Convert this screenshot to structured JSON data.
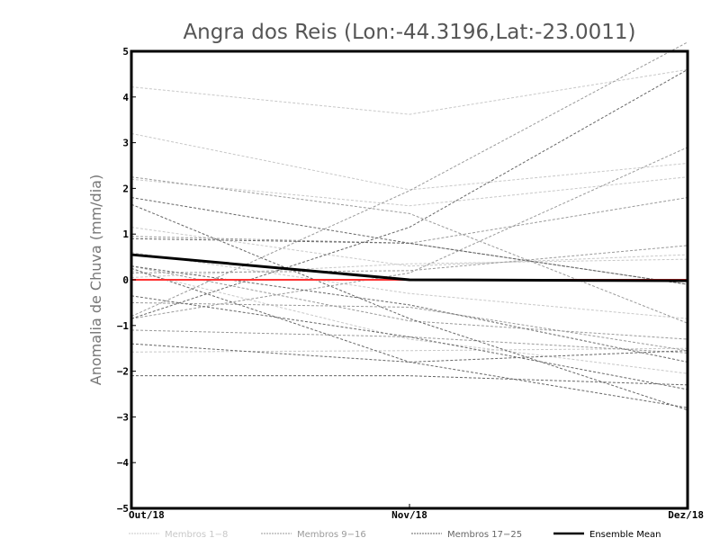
{
  "chart_data": {
    "type": "line",
    "title": "Angra dos Reis (Lon:-44.3196,Lat:-23.0011)",
    "xlabel": "",
    "ylabel": "Anomalia de Chuva (mm/dia)",
    "categories": [
      "Out/18",
      "Nov/18",
      "Dez/18"
    ],
    "ylim": [
      -5,
      5
    ],
    "yticks": [
      -5,
      -4,
      -3,
      -2,
      -1,
      0,
      1,
      2,
      3,
      4,
      5
    ],
    "grid": false,
    "legend_position": "bottom",
    "reference_line": {
      "value": 0,
      "color": "#ff3333"
    },
    "groups": [
      {
        "name": "Membros 1-8",
        "color": "#c8c8c8",
        "series": [
          [
            4.22,
            3.62,
            4.6
          ],
          [
            3.2,
            1.97,
            2.55
          ],
          [
            2.2,
            1.62,
            2.25
          ],
          [
            1.15,
            0.3,
            0.55
          ],
          [
            0.6,
            -0.3,
            -0.85
          ],
          [
            0.2,
            -1.3,
            -2.05
          ],
          [
            -1.58,
            -1.55,
            -1.5
          ],
          [
            0.05,
            0.35,
            0.45
          ]
        ]
      },
      {
        "name": "Membros 9-16",
        "color": "#9a9a9a",
        "series": [
          [
            -0.8,
            1.95,
            5.2
          ],
          [
            0.95,
            0.8,
            1.8
          ],
          [
            2.25,
            1.45,
            -0.95
          ],
          [
            0.3,
            -0.9,
            -1.3
          ],
          [
            -0.5,
            -0.6,
            -1.55
          ],
          [
            -1.1,
            -1.25,
            -1.6
          ],
          [
            0.15,
            0.2,
            0.75
          ],
          [
            -0.85,
            0.15,
            2.9
          ]
        ]
      },
      {
        "name": "Membros 17-25",
        "color": "#666666",
        "series": [
          [
            -0.85,
            1.15,
            4.6
          ],
          [
            1.8,
            0.8,
            -0.1
          ],
          [
            1.65,
            -0.85,
            -2.85
          ],
          [
            0.25,
            -1.8,
            -2.8
          ],
          [
            -0.35,
            -1.25,
            -2.4
          ],
          [
            -1.4,
            -1.8,
            -1.55
          ],
          [
            -2.1,
            -2.1,
            -2.3
          ],
          [
            0.9,
            0.8,
            -0.1
          ],
          [
            0.3,
            -0.55,
            -1.8
          ]
        ]
      }
    ],
    "ensemble_mean": {
      "name": "Ensemble Mean",
      "color": "#000000",
      "values": [
        0.55,
        0.0,
        -0.02
      ]
    }
  }
}
